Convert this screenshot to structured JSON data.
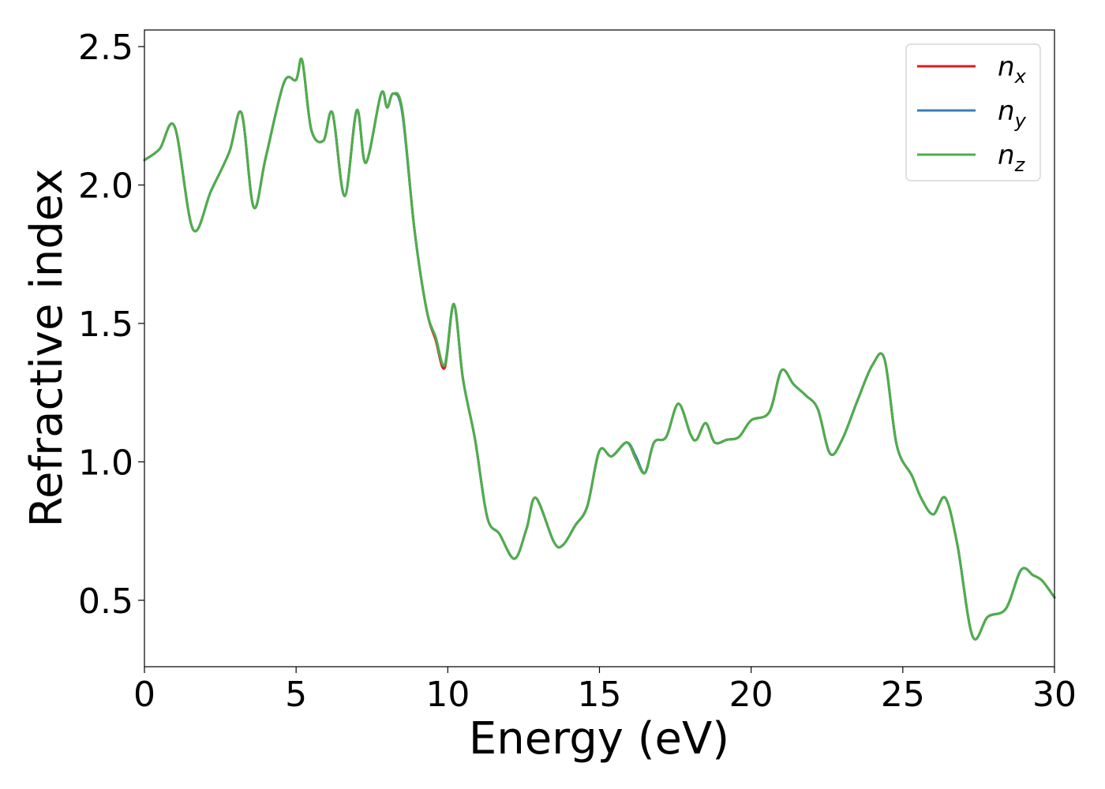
{
  "chart_data": {
    "type": "line",
    "title": "",
    "xlabel": "Energy (eV)",
    "ylabel": "Refractive index",
    "xlim": [
      0,
      30
    ],
    "ylim": [
      0.26,
      2.56
    ],
    "xticks": [
      0,
      5,
      10,
      15,
      20,
      25,
      30
    ],
    "xtick_labels": [
      "0",
      "5",
      "10",
      "15",
      "20",
      "25",
      "30"
    ],
    "yticks": [
      0.5,
      1.0,
      1.5,
      2.0,
      2.5
    ],
    "ytick_labels": [
      "0.5",
      "1.0",
      "1.5",
      "2.0",
      "2.5"
    ],
    "grid": false,
    "legend_position": "top-right",
    "series": [
      {
        "name": "n_x",
        "label_main": "n",
        "label_sub": "x",
        "color": "#e41a1c",
        "x": [
          0,
          0.5,
          1.0,
          1.6,
          2.2,
          2.8,
          3.2,
          3.6,
          4.0,
          4.6,
          5.0,
          5.2,
          5.5,
          5.9,
          6.2,
          6.6,
          7.0,
          7.3,
          7.8,
          8.0,
          8.2,
          8.5,
          8.9,
          9.3,
          9.6,
          9.9,
          10.2,
          10.5,
          10.9,
          11.3,
          11.7,
          12.2,
          12.6,
          12.9,
          13.5,
          13.8,
          14.2,
          14.6,
          15.0,
          15.4,
          15.9,
          16.2,
          16.5,
          16.8,
          17.2,
          17.6,
          18.0,
          18.2,
          18.5,
          18.8,
          19.2,
          19.6,
          20.0,
          20.6,
          21.0,
          21.4,
          21.8,
          22.2,
          22.6,
          23.0,
          23.5,
          24.0,
          24.4,
          24.8,
          25.3,
          25.6,
          26.0,
          26.4,
          26.8,
          27.3,
          27.8,
          28.4,
          28.9,
          29.3,
          29.6,
          30.0
        ],
        "y": [
          2.09,
          2.13,
          2.21,
          1.84,
          1.98,
          2.12,
          2.26,
          1.92,
          2.1,
          2.37,
          2.38,
          2.45,
          2.2,
          2.16,
          2.26,
          1.96,
          2.27,
          2.08,
          2.33,
          2.28,
          2.33,
          2.27,
          1.84,
          1.55,
          1.44,
          1.34,
          1.57,
          1.3,
          1.08,
          0.8,
          0.74,
          0.65,
          0.76,
          0.87,
          0.71,
          0.7,
          0.77,
          0.84,
          1.04,
          1.02,
          1.07,
          1.01,
          0.96,
          1.07,
          1.09,
          1.21,
          1.1,
          1.08,
          1.14,
          1.07,
          1.08,
          1.09,
          1.15,
          1.18,
          1.33,
          1.28,
          1.24,
          1.19,
          1.03,
          1.08,
          1.22,
          1.35,
          1.37,
          1.06,
          0.95,
          0.87,
          0.81,
          0.87,
          0.7,
          0.37,
          0.44,
          0.47,
          0.61,
          0.59,
          0.57,
          0.51
        ]
      },
      {
        "name": "n_y",
        "label_main": "n",
        "label_sub": "y",
        "color": "#377eb8",
        "x": [
          0,
          0.5,
          1.0,
          1.6,
          2.2,
          2.8,
          3.2,
          3.6,
          4.0,
          4.6,
          5.0,
          5.2,
          5.5,
          5.9,
          6.2,
          6.6,
          7.0,
          7.3,
          7.8,
          8.0,
          8.2,
          8.5,
          8.9,
          9.3,
          9.6,
          9.9,
          10.2,
          10.5,
          10.9,
          11.3,
          11.7,
          12.2,
          12.6,
          12.9,
          13.5,
          13.8,
          14.2,
          14.6,
          15.0,
          15.4,
          15.9,
          16.2,
          16.5,
          16.8,
          17.2,
          17.6,
          18.0,
          18.2,
          18.5,
          18.8,
          19.2,
          19.6,
          20.0,
          20.6,
          21.0,
          21.4,
          21.8,
          22.2,
          22.6,
          23.0,
          23.5,
          24.0,
          24.4,
          24.8,
          25.3,
          25.6,
          26.0,
          26.4,
          26.8,
          27.3,
          27.8,
          28.4,
          28.9,
          29.3,
          29.6,
          30.0
        ],
        "y": [
          2.09,
          2.13,
          2.21,
          1.84,
          1.98,
          2.12,
          2.26,
          1.92,
          2.1,
          2.37,
          2.38,
          2.45,
          2.2,
          2.16,
          2.26,
          1.96,
          2.27,
          2.08,
          2.33,
          2.28,
          2.33,
          2.26,
          1.84,
          1.55,
          1.45,
          1.35,
          1.57,
          1.3,
          1.08,
          0.8,
          0.74,
          0.65,
          0.76,
          0.87,
          0.71,
          0.7,
          0.77,
          0.84,
          1.04,
          1.02,
          1.07,
          1.02,
          0.96,
          1.07,
          1.09,
          1.21,
          1.1,
          1.08,
          1.14,
          1.07,
          1.08,
          1.09,
          1.15,
          1.18,
          1.33,
          1.28,
          1.24,
          1.19,
          1.03,
          1.08,
          1.22,
          1.35,
          1.37,
          1.06,
          0.95,
          0.87,
          0.81,
          0.87,
          0.7,
          0.37,
          0.44,
          0.47,
          0.61,
          0.59,
          0.57,
          0.51
        ]
      },
      {
        "name": "n_z",
        "label_main": "n",
        "label_sub": "z",
        "color": "#4daf4a",
        "x": [
          0,
          0.5,
          1.0,
          1.6,
          2.2,
          2.8,
          3.2,
          3.6,
          4.0,
          4.6,
          5.0,
          5.2,
          5.5,
          5.9,
          6.2,
          6.6,
          7.0,
          7.3,
          7.8,
          8.0,
          8.2,
          8.5,
          8.9,
          9.3,
          9.6,
          9.9,
          10.2,
          10.5,
          10.9,
          11.3,
          11.7,
          12.2,
          12.6,
          12.9,
          13.5,
          13.8,
          14.2,
          14.6,
          15.0,
          15.4,
          15.9,
          16.2,
          16.5,
          16.8,
          17.2,
          17.6,
          18.0,
          18.2,
          18.5,
          18.8,
          19.2,
          19.6,
          20.0,
          20.6,
          21.0,
          21.4,
          21.8,
          22.2,
          22.6,
          23.0,
          23.5,
          24.0,
          24.4,
          24.8,
          25.3,
          25.6,
          26.0,
          26.4,
          26.8,
          27.3,
          27.8,
          28.4,
          28.9,
          29.3,
          29.6,
          30.0
        ],
        "y": [
          2.09,
          2.13,
          2.21,
          1.84,
          1.98,
          2.12,
          2.26,
          1.92,
          2.1,
          2.37,
          2.38,
          2.45,
          2.2,
          2.16,
          2.26,
          1.96,
          2.27,
          2.08,
          2.33,
          2.28,
          2.33,
          2.27,
          1.84,
          1.55,
          1.45,
          1.35,
          1.57,
          1.3,
          1.08,
          0.8,
          0.74,
          0.65,
          0.76,
          0.87,
          0.71,
          0.7,
          0.77,
          0.84,
          1.04,
          1.02,
          1.07,
          1.01,
          0.96,
          1.07,
          1.09,
          1.21,
          1.1,
          1.08,
          1.14,
          1.07,
          1.08,
          1.09,
          1.15,
          1.18,
          1.33,
          1.28,
          1.24,
          1.19,
          1.03,
          1.08,
          1.22,
          1.35,
          1.37,
          1.06,
          0.95,
          0.87,
          0.81,
          0.87,
          0.7,
          0.37,
          0.44,
          0.47,
          0.61,
          0.59,
          0.57,
          0.51
        ]
      }
    ]
  }
}
